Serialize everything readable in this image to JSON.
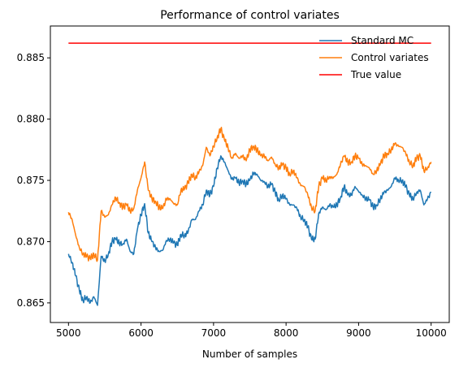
{
  "chart_data": {
    "type": "line",
    "title": "Performance of control variates",
    "xlabel": "Number of samples",
    "ylabel": "",
    "xlim": [
      4750,
      10250
    ],
    "ylim": [
      0.8634,
      0.8876
    ],
    "xticks": [
      5000,
      6000,
      7000,
      8000,
      9000,
      10000
    ],
    "yticks": [
      0.865,
      0.87,
      0.875,
      0.88,
      0.885
    ],
    "ytick_labels": [
      "0.865",
      "0.870",
      "0.875",
      "0.880",
      "0.885"
    ],
    "grid": false,
    "legend_position": "top-right",
    "series": [
      {
        "name": "Standard MC",
        "color": "#1f77b4",
        "x": [
          5000,
          5050,
          5100,
          5150,
          5200,
          5250,
          5300,
          5350,
          5400,
          5450,
          5500,
          5550,
          5600,
          5650,
          5700,
          5750,
          5800,
          5850,
          5900,
          5950,
          6000,
          6050,
          6100,
          6150,
          6200,
          6250,
          6300,
          6350,
          6400,
          6450,
          6500,
          6550,
          6600,
          6650,
          6700,
          6750,
          6800,
          6850,
          6900,
          6950,
          7000,
          7050,
          7100,
          7150,
          7200,
          7250,
          7300,
          7350,
          7400,
          7450,
          7500,
          7550,
          7600,
          7650,
          7700,
          7750,
          7800,
          7850,
          7900,
          7950,
          8000,
          8050,
          8100,
          8150,
          8200,
          8250,
          8300,
          8350,
          8400,
          8450,
          8500,
          8550,
          8600,
          8650,
          8700,
          8750,
          8800,
          8850,
          8900,
          8950,
          9000,
          9050,
          9100,
          9150,
          9200,
          9250,
          9300,
          9350,
          9400,
          9450,
          9500,
          9550,
          9600,
          9650,
          9700,
          9750,
          9800,
          9850,
          9900,
          9950,
          10000
        ],
        "values": [
          0.869,
          0.8683,
          0.8672,
          0.866,
          0.8652,
          0.8655,
          0.865,
          0.8655,
          0.8648,
          0.8688,
          0.8684,
          0.869,
          0.87,
          0.8702,
          0.8699,
          0.8698,
          0.8702,
          0.8692,
          0.869,
          0.871,
          0.8722,
          0.8731,
          0.8707,
          0.87,
          0.8695,
          0.8692,
          0.8693,
          0.8701,
          0.8702,
          0.8699,
          0.8697,
          0.8706,
          0.8705,
          0.8708,
          0.8718,
          0.8718,
          0.8725,
          0.873,
          0.8742,
          0.8738,
          0.8745,
          0.876,
          0.877,
          0.8765,
          0.8758,
          0.8751,
          0.8752,
          0.8748,
          0.875,
          0.8747,
          0.875,
          0.8756,
          0.8755,
          0.875,
          0.8749,
          0.8745,
          0.8747,
          0.874,
          0.8734,
          0.8738,
          0.8735,
          0.873,
          0.873,
          0.8727,
          0.872,
          0.8718,
          0.8712,
          0.8702,
          0.8702,
          0.8723,
          0.8728,
          0.8726,
          0.873,
          0.8728,
          0.873,
          0.8736,
          0.8745,
          0.8738,
          0.8738,
          0.8745,
          0.8741,
          0.8738,
          0.8735,
          0.8734,
          0.8728,
          0.873,
          0.8735,
          0.874,
          0.8742,
          0.8745,
          0.8752,
          0.875,
          0.875,
          0.8745,
          0.8738,
          0.8735,
          0.874,
          0.8742,
          0.873,
          0.8735,
          0.874
        ]
      },
      {
        "name": "Control variates",
        "color": "#ff7f0e",
        "x": [
          5000,
          5050,
          5100,
          5150,
          5200,
          5250,
          5300,
          5350,
          5400,
          5450,
          5500,
          5550,
          5600,
          5650,
          5700,
          5750,
          5800,
          5850,
          5900,
          5950,
          6000,
          6050,
          6100,
          6150,
          6200,
          6250,
          6300,
          6350,
          6400,
          6450,
          6500,
          6550,
          6600,
          6650,
          6700,
          6750,
          6800,
          6850,
          6900,
          6950,
          7000,
          7050,
          7100,
          7150,
          7200,
          7250,
          7300,
          7350,
          7400,
          7450,
          7500,
          7550,
          7600,
          7650,
          7700,
          7750,
          7800,
          7850,
          7900,
          7950,
          8000,
          8050,
          8100,
          8150,
          8200,
          8250,
          8300,
          8350,
          8400,
          8450,
          8500,
          8550,
          8600,
          8650,
          8700,
          8750,
          8800,
          8850,
          8900,
          8950,
          9000,
          9050,
          9100,
          9150,
          9200,
          9250,
          9300,
          9350,
          9400,
          9450,
          9500,
          9550,
          9600,
          9650,
          9700,
          9750,
          9800,
          9850,
          9900,
          9950,
          10000
        ],
        "values": [
          0.8724,
          0.8718,
          0.8705,
          0.8695,
          0.869,
          0.8688,
          0.8686,
          0.869,
          0.8685,
          0.8725,
          0.872,
          0.8722,
          0.873,
          0.8736,
          0.8732,
          0.8728,
          0.873,
          0.8725,
          0.8727,
          0.8742,
          0.8752,
          0.8765,
          0.8742,
          0.8735,
          0.8733,
          0.8728,
          0.8727,
          0.8735,
          0.8735,
          0.8731,
          0.873,
          0.8742,
          0.8743,
          0.8748,
          0.8755,
          0.8752,
          0.8757,
          0.8762,
          0.8777,
          0.877,
          0.8778,
          0.8785,
          0.8792,
          0.8783,
          0.8777,
          0.8768,
          0.8772,
          0.8768,
          0.877,
          0.8766,
          0.8775,
          0.8778,
          0.8775,
          0.877,
          0.877,
          0.8766,
          0.8769,
          0.8763,
          0.876,
          0.8763,
          0.876,
          0.8755,
          0.8758,
          0.8752,
          0.8746,
          0.8745,
          0.8738,
          0.8728,
          0.8725,
          0.8745,
          0.8752,
          0.875,
          0.8753,
          0.8752,
          0.8755,
          0.8763,
          0.877,
          0.8765,
          0.8765,
          0.877,
          0.8768,
          0.8763,
          0.8762,
          0.876,
          0.8755,
          0.8758,
          0.8763,
          0.877,
          0.8772,
          0.8775,
          0.878,
          0.8778,
          0.8777,
          0.8772,
          0.8765,
          0.8762,
          0.8768,
          0.877,
          0.8758,
          0.876,
          0.8765
        ]
      },
      {
        "name": "True value",
        "color": "#ff0000",
        "x": [
          5000,
          10000
        ],
        "values": [
          0.8862,
          0.8862
        ]
      }
    ]
  }
}
